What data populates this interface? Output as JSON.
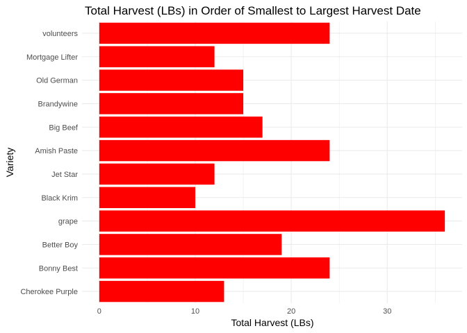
{
  "chart_data": {
    "type": "bar",
    "orientation": "horizontal",
    "title": "Total Harvest (LBs) in Order of Smallest to Largest Harvest Date",
    "xlabel": "Total Harvest (LBs)",
    "ylabel": "Variety",
    "categories": [
      "volunteers",
      "Mortgage Lifter",
      "Old German",
      "Brandywine",
      "Big Beef",
      "Amish Paste",
      "Jet Star",
      "Black Krim",
      "grape",
      "Better Boy",
      "Bonny Best",
      "Cherokee Purple"
    ],
    "values": [
      24,
      12,
      15,
      15,
      17,
      24,
      12,
      10,
      36,
      19,
      24,
      13
    ],
    "xlim": [
      -1.8,
      37.8
    ],
    "xticks": [
      0,
      10,
      20,
      30
    ],
    "grid": true,
    "bar_color": "#FF0000",
    "grid_color": "#EBEBEB",
    "background": "#FFFFFF"
  }
}
